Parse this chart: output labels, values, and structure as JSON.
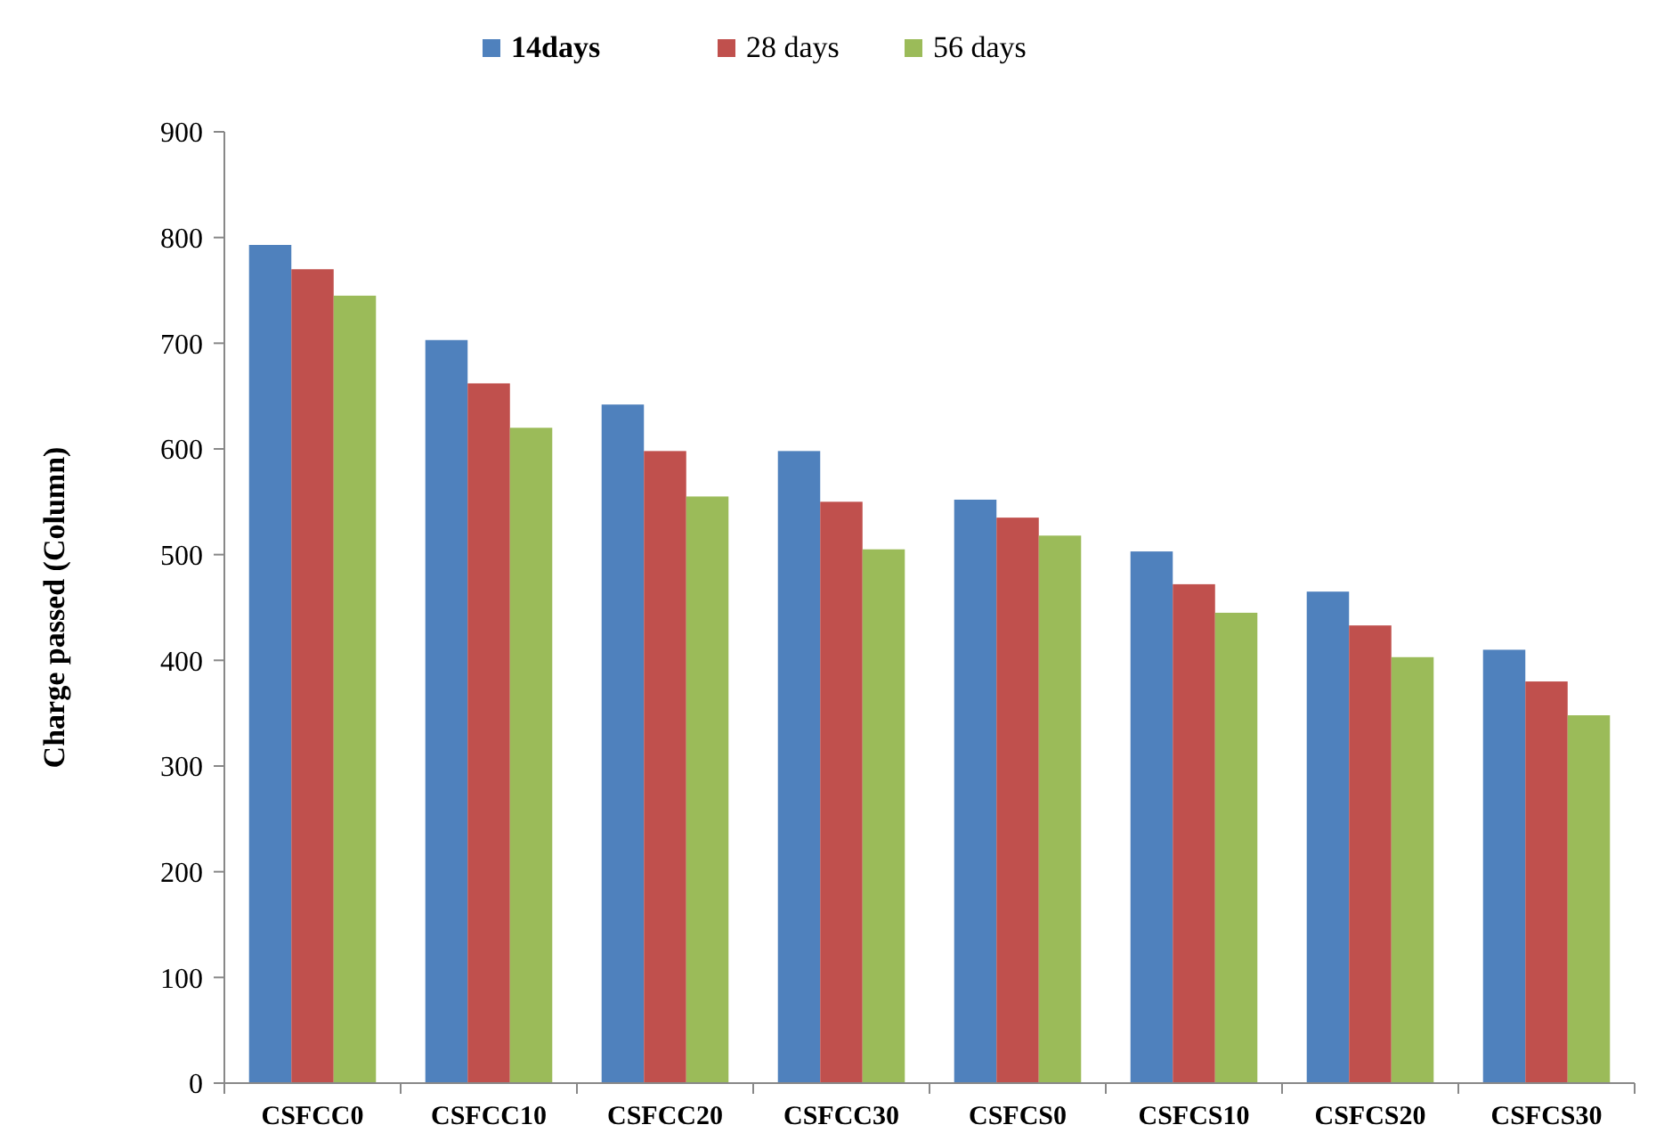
{
  "chart_data": {
    "type": "bar",
    "ylabel": "Charge passed (Column)",
    "categories": [
      "CSFCC0",
      "CSFCC10",
      "CSFCC20",
      "CSFCC30",
      "CSFCS0",
      "CSFCS10",
      "CSFCS20",
      "CSFCS30"
    ],
    "series": [
      {
        "name": "14days",
        "color": "#4f81bd",
        "values": [
          793,
          703,
          642,
          598,
          552,
          503,
          465,
          410
        ]
      },
      {
        "name": "28 days",
        "color": "#c0504d",
        "values": [
          770,
          662,
          598,
          550,
          535,
          472,
          433,
          380
        ]
      },
      {
        "name": "56 days",
        "color": "#9bbb59",
        "values": [
          745,
          620,
          555,
          505,
          518,
          445,
          403,
          348
        ]
      }
    ],
    "ylim": [
      0,
      900
    ],
    "yticks": [
      0,
      100,
      200,
      300,
      400,
      500,
      600,
      700,
      800,
      900
    ],
    "grid": false,
    "legend": "top"
  }
}
